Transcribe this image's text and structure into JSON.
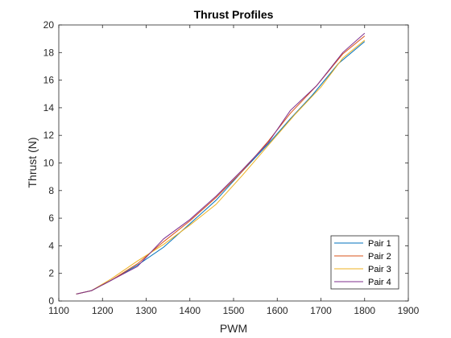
{
  "chart_data": {
    "type": "line",
    "title": "Thrust Profiles",
    "xlabel": "PWM",
    "ylabel": "Thrust (N)",
    "xlim": [
      1100,
      1900
    ],
    "ylim": [
      0,
      20
    ],
    "x_ticks": [
      "1100",
      "1200",
      "1300",
      "1400",
      "1500",
      "1600",
      "1700",
      "1800",
      "1900"
    ],
    "y_ticks": [
      "0",
      "2",
      "4",
      "6",
      "8",
      "10",
      "12",
      "14",
      "16",
      "18",
      "20"
    ],
    "grid": false,
    "legend_position": "bottom-right",
    "series": [
      {
        "name": "Pair 1",
        "color": "#0072BD",
        "points": [
          [
            1140,
            0.5
          ],
          [
            1175,
            0.75
          ],
          [
            1220,
            1.5
          ],
          [
            1280,
            2.6
          ],
          [
            1340,
            3.9
          ],
          [
            1400,
            5.6
          ],
          [
            1460,
            7.3
          ],
          [
            1520,
            9.4
          ],
          [
            1580,
            11.4
          ],
          [
            1630,
            13.2
          ],
          [
            1680,
            14.9
          ],
          [
            1740,
            17.2
          ],
          [
            1800,
            18.8
          ]
        ]
      },
      {
        "name": "Pair 2",
        "color": "#D95319",
        "points": [
          [
            1140,
            0.5
          ],
          [
            1175,
            0.75
          ],
          [
            1220,
            1.5
          ],
          [
            1280,
            2.7
          ],
          [
            1340,
            4.3
          ],
          [
            1400,
            5.8
          ],
          [
            1460,
            7.5
          ],
          [
            1520,
            9.4
          ],
          [
            1580,
            11.6
          ],
          [
            1630,
            13.6
          ],
          [
            1690,
            15.6
          ],
          [
            1750,
            17.9
          ],
          [
            1800,
            19.2
          ]
        ]
      },
      {
        "name": "Pair 3",
        "color": "#EDB120",
        "points": [
          [
            1140,
            0.5
          ],
          [
            1175,
            0.75
          ],
          [
            1220,
            1.6
          ],
          [
            1280,
            2.9
          ],
          [
            1340,
            4.1
          ],
          [
            1400,
            5.5
          ],
          [
            1460,
            7.0
          ],
          [
            1520,
            9.1
          ],
          [
            1580,
            11.3
          ],
          [
            1640,
            13.5
          ],
          [
            1700,
            15.5
          ],
          [
            1750,
            17.6
          ],
          [
            1800,
            18.9
          ]
        ]
      },
      {
        "name": "Pair 4",
        "color": "#7E2F8E",
        "points": [
          [
            1140,
            0.5
          ],
          [
            1175,
            0.75
          ],
          [
            1220,
            1.5
          ],
          [
            1280,
            2.5
          ],
          [
            1340,
            4.5
          ],
          [
            1400,
            5.9
          ],
          [
            1460,
            7.6
          ],
          [
            1520,
            9.5
          ],
          [
            1580,
            11.5
          ],
          [
            1630,
            13.8
          ],
          [
            1690,
            15.6
          ],
          [
            1750,
            18.0
          ],
          [
            1800,
            19.4
          ]
        ]
      }
    ]
  }
}
